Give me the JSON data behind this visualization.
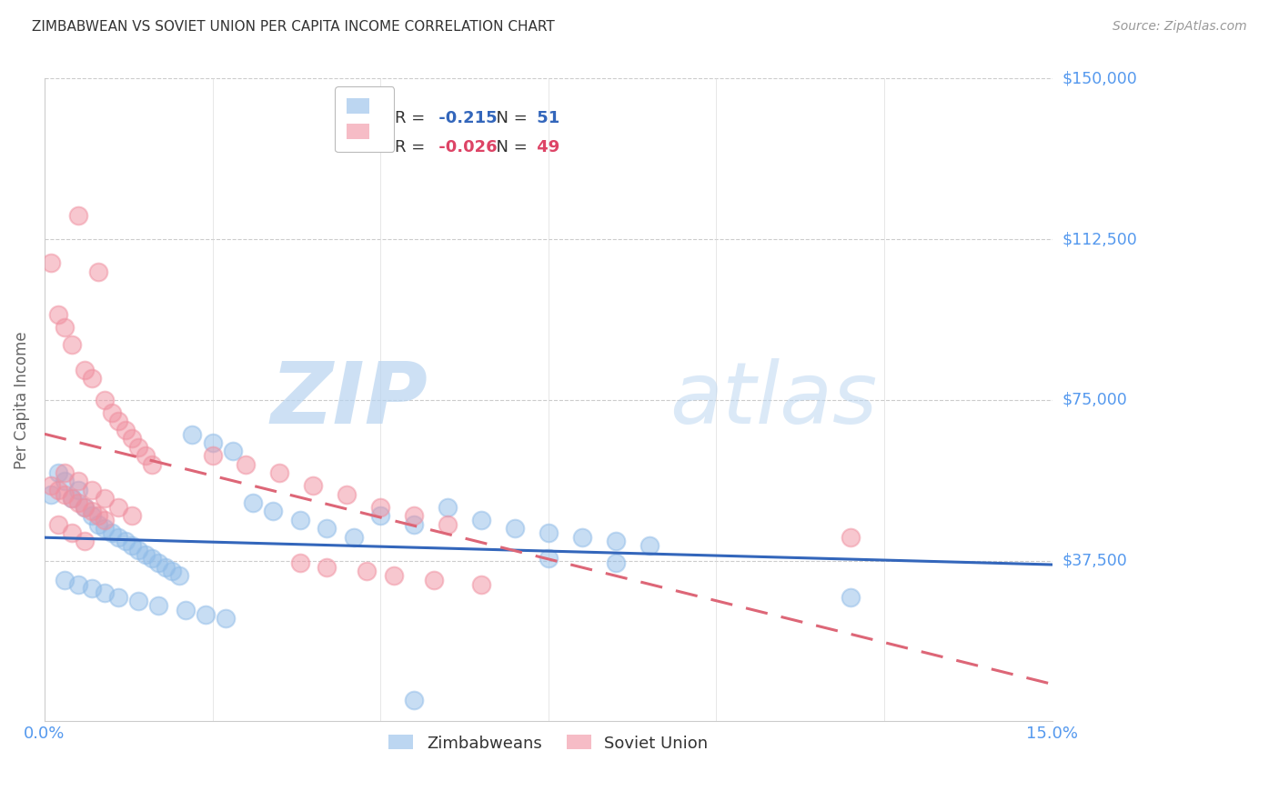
{
  "title": "ZIMBABWEAN VS SOVIET UNION PER CAPITA INCOME CORRELATION CHART",
  "source": "Source: ZipAtlas.com",
  "ylabel": "Per Capita Income",
  "xlim": [
    0.0,
    0.15
  ],
  "ylim": [
    0,
    150000
  ],
  "yticks": [
    37500,
    75000,
    112500,
    150000
  ],
  "ytick_labels": [
    "$37,500",
    "$75,000",
    "$112,500",
    "$150,000"
  ],
  "title_color": "#333333",
  "source_color": "#999999",
  "ylabel_color": "#666666",
  "ytick_color": "#5599ee",
  "xtick_color": "#5599ee",
  "watermark": "ZIPatlas",
  "watermark_color": "#d0e8ff",
  "legend_r1": "-0.215",
  "legend_n1": "51",
  "legend_r2": "-0.026",
  "legend_n2": "49",
  "blue_color": "#90bce8",
  "pink_color": "#f090a0",
  "blue_line_color": "#3366bb",
  "pink_line_color": "#dd6677",
  "zimbabweans_label": "Zimbabweans",
  "soviet_label": "Soviet Union",
  "zim_x": [
    0.001,
    0.002,
    0.003,
    0.004,
    0.005,
    0.006,
    0.007,
    0.008,
    0.009,
    0.01,
    0.011,
    0.012,
    0.013,
    0.014,
    0.015,
    0.016,
    0.017,
    0.018,
    0.019,
    0.02,
    0.022,
    0.025,
    0.028,
    0.003,
    0.005,
    0.007,
    0.009,
    0.011,
    0.014,
    0.017,
    0.021,
    0.024,
    0.027,
    0.031,
    0.034,
    0.038,
    0.042,
    0.046,
    0.05,
    0.055,
    0.06,
    0.065,
    0.07,
    0.075,
    0.08,
    0.085,
    0.09,
    0.075,
    0.085,
    0.12,
    0.055
  ],
  "zim_y": [
    53000,
    58000,
    56000,
    52000,
    54000,
    50000,
    48000,
    46000,
    45000,
    44000,
    43000,
    42000,
    41000,
    40000,
    39000,
    38000,
    37000,
    36000,
    35000,
    34000,
    67000,
    65000,
    63000,
    33000,
    32000,
    31000,
    30000,
    29000,
    28000,
    27000,
    26000,
    25000,
    24000,
    51000,
    49000,
    47000,
    45000,
    43000,
    48000,
    46000,
    50000,
    47000,
    45000,
    44000,
    43000,
    42000,
    41000,
    38000,
    37000,
    29000,
    5000
  ],
  "sov_x": [
    0.001,
    0.002,
    0.003,
    0.004,
    0.005,
    0.006,
    0.007,
    0.008,
    0.009,
    0.01,
    0.011,
    0.012,
    0.013,
    0.014,
    0.015,
    0.016,
    0.003,
    0.005,
    0.007,
    0.009,
    0.011,
    0.013,
    0.002,
    0.004,
    0.006,
    0.001,
    0.002,
    0.003,
    0.004,
    0.005,
    0.006,
    0.007,
    0.008,
    0.009,
    0.025,
    0.03,
    0.035,
    0.04,
    0.045,
    0.05,
    0.055,
    0.06,
    0.038,
    0.042,
    0.048,
    0.052,
    0.058,
    0.065,
    0.12
  ],
  "sov_y": [
    107000,
    95000,
    92000,
    88000,
    118000,
    82000,
    80000,
    105000,
    75000,
    72000,
    70000,
    68000,
    66000,
    64000,
    62000,
    60000,
    58000,
    56000,
    54000,
    52000,
    50000,
    48000,
    46000,
    44000,
    42000,
    55000,
    54000,
    53000,
    52000,
    51000,
    50000,
    49000,
    48000,
    47000,
    62000,
    60000,
    58000,
    55000,
    53000,
    50000,
    48000,
    46000,
    37000,
    36000,
    35000,
    34000,
    33000,
    32000,
    43000
  ]
}
